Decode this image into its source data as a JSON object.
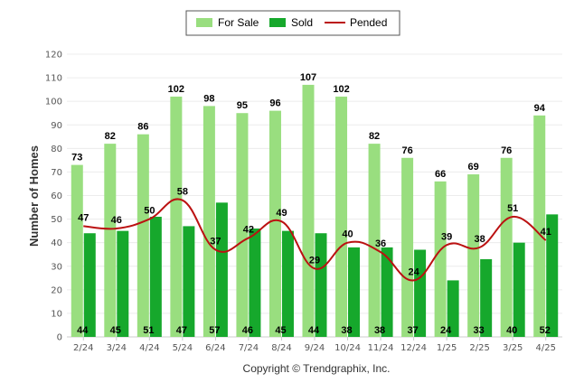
{
  "chart_data": {
    "type": "bar",
    "ylabel": "Number of Homes",
    "ylim": [
      0,
      120
    ],
    "yticks": [
      0,
      10,
      20,
      30,
      40,
      50,
      60,
      70,
      80,
      90,
      100,
      110,
      120
    ],
    "grid": true,
    "legend_position": "top-center",
    "categories": [
      "2/24",
      "3/24",
      "4/24",
      "5/24",
      "6/24",
      "7/24",
      "8/24",
      "9/24",
      "10/24",
      "11/24",
      "12/24",
      "1/25",
      "2/25",
      "3/25",
      "4/25"
    ],
    "series": [
      {
        "name": "For Sale",
        "kind": "bar",
        "color": "#99de7f",
        "values": [
          73,
          82,
          86,
          102,
          98,
          95,
          96,
          107,
          102,
          82,
          76,
          66,
          69,
          76,
          94
        ]
      },
      {
        "name": "Sold",
        "kind": "bar",
        "color": "#16a82c",
        "values": [
          44,
          45,
          51,
          47,
          57,
          46,
          45,
          44,
          38,
          38,
          37,
          24,
          33,
          40,
          52
        ]
      },
      {
        "name": "Pended",
        "kind": "line",
        "color": "#bb1111",
        "values": [
          47,
          46,
          50,
          58,
          37,
          42,
          49,
          29,
          40,
          36,
          24,
          39,
          38,
          51,
          41
        ]
      }
    ],
    "footer": "Copyright © Trendgraphix, Inc."
  }
}
